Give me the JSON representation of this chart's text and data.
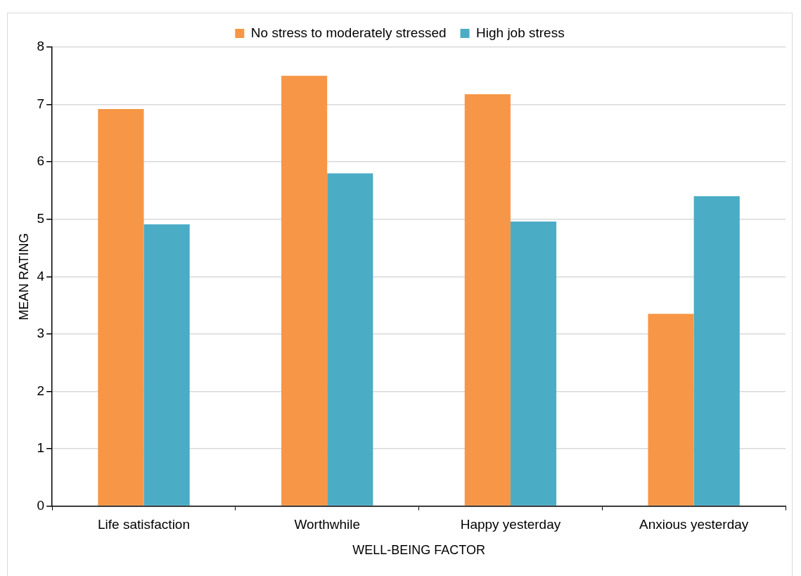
{
  "chart_data": {
    "type": "bar",
    "xlabel": "WELL-BEING FACTOR",
    "ylabel": "MEAN RATING",
    "categories": [
      "Life satisfaction",
      "Worthwhile",
      "Happy yesterday",
      "Anxious yesterday"
    ],
    "series": [
      {
        "name": "No stress to moderately stressed",
        "color": "#f79646",
        "values": [
          6.92,
          7.5,
          7.18,
          3.35
        ]
      },
      {
        "name": "High job stress",
        "color": "#4bacc6",
        "values": [
          4.91,
          5.8,
          4.96,
          5.4
        ]
      }
    ],
    "ylim": [
      0,
      8
    ],
    "yticks": [
      0,
      1,
      2,
      3,
      4,
      5,
      6,
      7,
      8
    ],
    "grid": "y",
    "legend": "top"
  }
}
